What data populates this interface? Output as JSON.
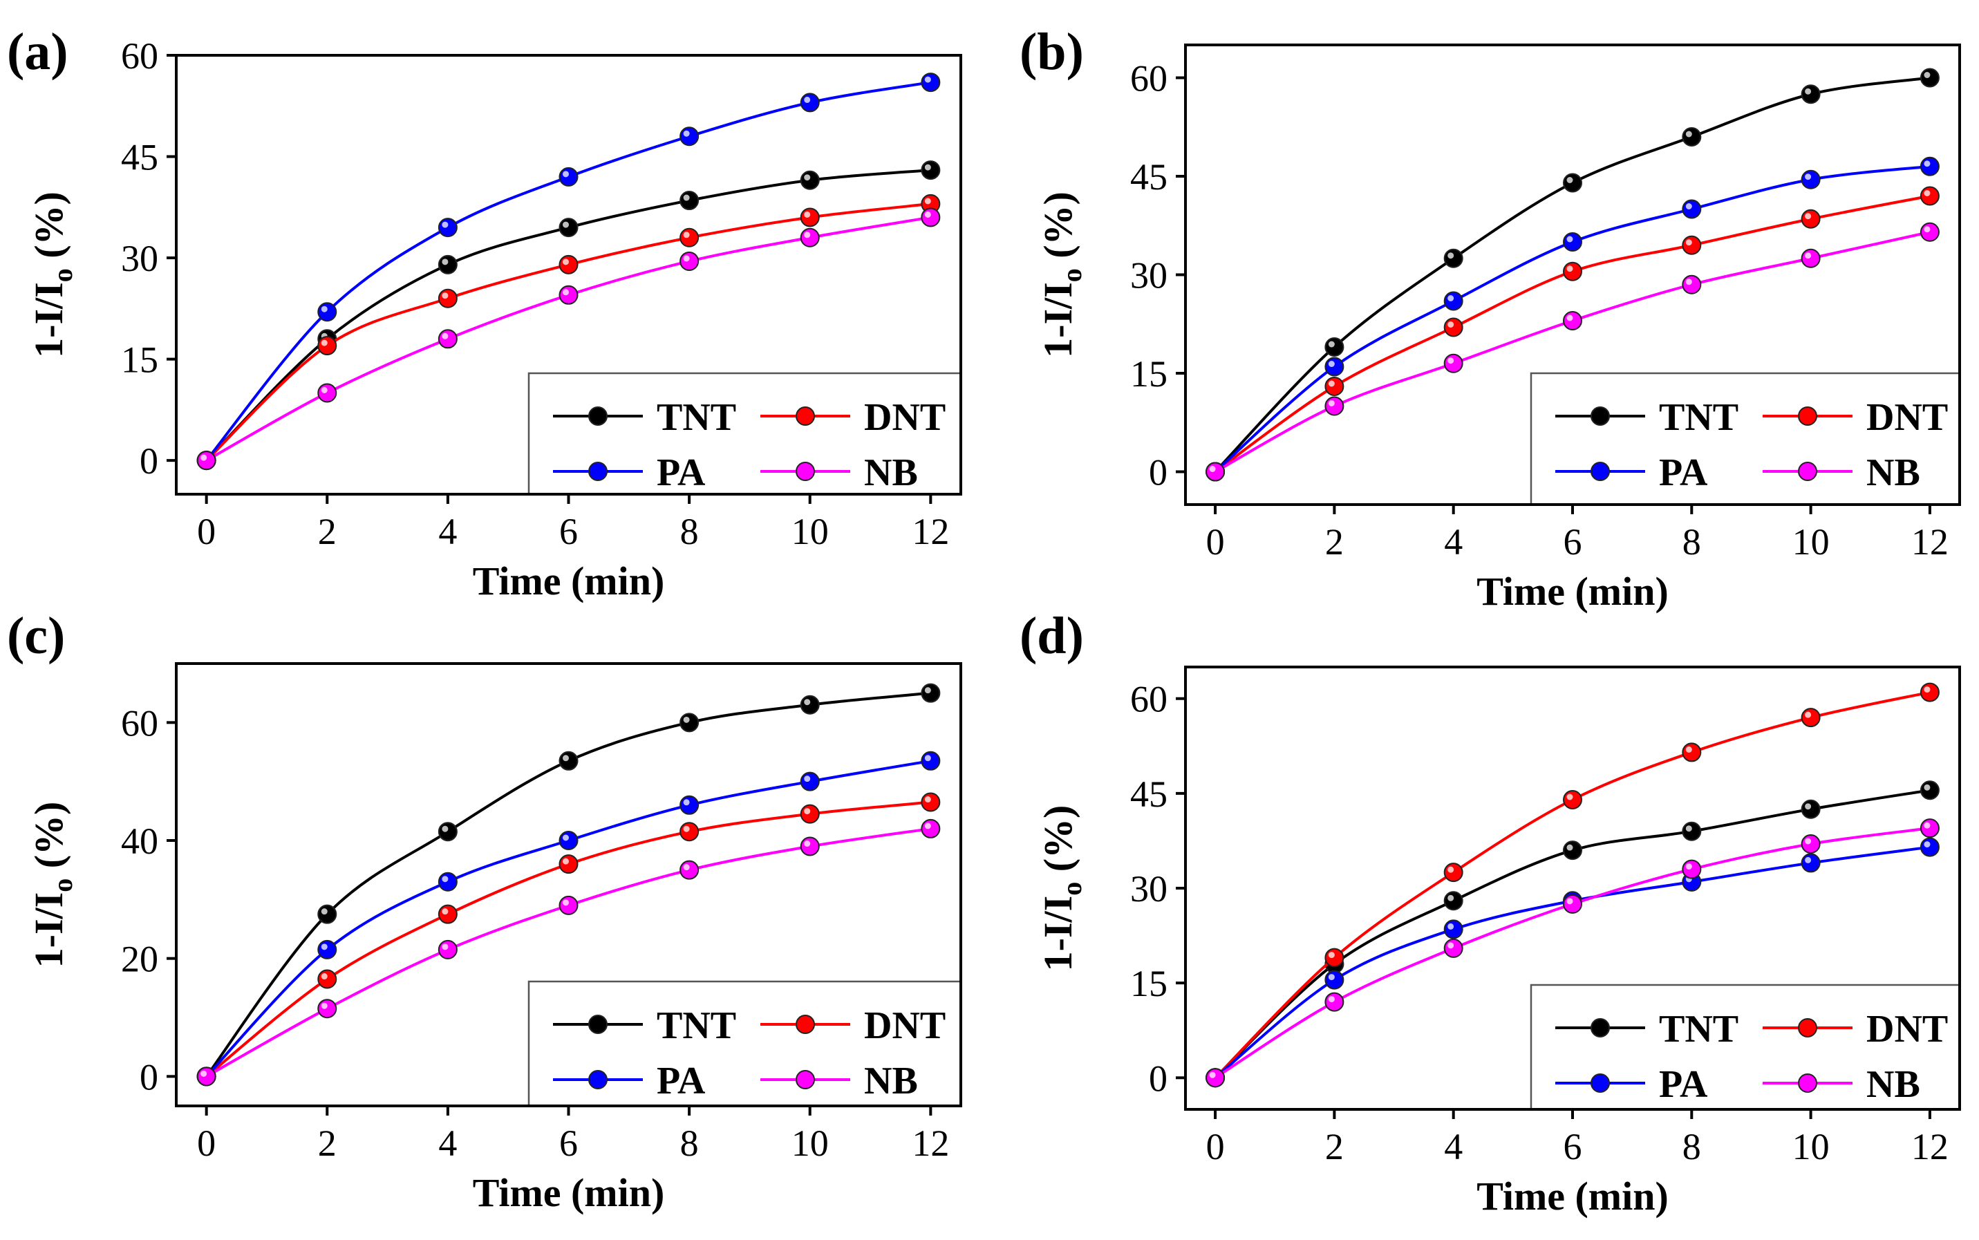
{
  "chart_data": [
    {
      "type": "line",
      "panel": "(a)",
      "xlabel": "Time (min)",
      "ylabel": "1-I/I",
      "ylabel_sub": "o",
      "ylabel_unit": " (%)",
      "x": [
        0,
        2,
        4,
        6,
        8,
        10,
        12
      ],
      "xlim": [
        -0.5,
        12.5
      ],
      "ylim": [
        -5,
        60
      ],
      "xticks": [
        0,
        2,
        4,
        6,
        8,
        10,
        12
      ],
      "yticks": [
        0,
        15,
        30,
        45,
        60
      ],
      "legend_position": "bottom-right",
      "series": [
        {
          "name": "TNT",
          "color": "#000000",
          "values": [
            0,
            18,
            29,
            34.5,
            38.5,
            41.5,
            43
          ]
        },
        {
          "name": "DNT",
          "color": "#ff0000",
          "values": [
            0,
            17,
            24,
            29,
            33,
            36,
            38
          ]
        },
        {
          "name": "PA",
          "color": "#0000ff",
          "values": [
            0,
            22,
            34.5,
            42,
            48,
            53,
            56
          ]
        },
        {
          "name": "NB",
          "color": "#ff00ff",
          "values": [
            0,
            10,
            18,
            24.5,
            29.5,
            33,
            36
          ]
        }
      ]
    },
    {
      "type": "line",
      "panel": "(b)",
      "xlabel": "Time (min)",
      "ylabel": "1-I/I",
      "ylabel_sub": "o",
      "ylabel_unit": " (%)",
      "x": [
        0,
        2,
        4,
        6,
        8,
        10,
        12
      ],
      "xlim": [
        -0.5,
        12.5
      ],
      "ylim": [
        -5,
        65
      ],
      "xticks": [
        0,
        2,
        4,
        6,
        8,
        10,
        12
      ],
      "yticks": [
        0,
        15,
        30,
        45,
        60
      ],
      "legend_position": "bottom-right",
      "series": [
        {
          "name": "TNT",
          "color": "#000000",
          "values": [
            0,
            19,
            32.5,
            44,
            51,
            57.5,
            60
          ]
        },
        {
          "name": "DNT",
          "color": "#ff0000",
          "values": [
            0,
            13,
            22,
            30.5,
            34.5,
            38.5,
            42
          ]
        },
        {
          "name": "PA",
          "color": "#0000ff",
          "values": [
            0,
            16,
            26,
            35,
            40,
            44.5,
            46.5
          ]
        },
        {
          "name": "NB",
          "color": "#ff00ff",
          "values": [
            0,
            10,
            16.5,
            23,
            28.5,
            32.5,
            36.5
          ]
        }
      ]
    },
    {
      "type": "line",
      "panel": "(c)",
      "xlabel": "Time (min)",
      "ylabel": "1-I/I",
      "ylabel_sub": "o",
      "ylabel_unit": " (%)",
      "x": [
        0,
        2,
        4,
        6,
        8,
        10,
        12
      ],
      "xlim": [
        -0.5,
        12.5
      ],
      "ylim": [
        -5,
        70
      ],
      "xticks": [
        0,
        2,
        4,
        6,
        8,
        10,
        12
      ],
      "yticks": [
        0,
        20,
        40,
        60
      ],
      "legend_position": "bottom-right",
      "series": [
        {
          "name": "TNT",
          "color": "#000000",
          "values": [
            0,
            27.5,
            41.5,
            53.5,
            60,
            63,
            65
          ]
        },
        {
          "name": "DNT",
          "color": "#ff0000",
          "values": [
            0,
            16.5,
            27.5,
            36,
            41.5,
            44.5,
            46.5
          ]
        },
        {
          "name": "PA",
          "color": "#0000ff",
          "values": [
            0,
            21.5,
            33,
            40,
            46,
            50,
            53.5
          ]
        },
        {
          "name": "NB",
          "color": "#ff00ff",
          "values": [
            0,
            11.5,
            21.5,
            29,
            35,
            39,
            42
          ]
        }
      ]
    },
    {
      "type": "line",
      "panel": "(d)",
      "xlabel": "Time (min)",
      "ylabel": "1-I/I",
      "ylabel_sub": "o",
      "ylabel_unit": " (%)",
      "x": [
        0,
        2,
        4,
        6,
        8,
        10,
        12
      ],
      "xlim": [
        -0.5,
        12.5
      ],
      "ylim": [
        -5,
        65
      ],
      "xticks": [
        0,
        2,
        4,
        6,
        8,
        10,
        12
      ],
      "yticks": [
        0,
        15,
        30,
        45,
        60
      ],
      "legend_position": "bottom-right",
      "series": [
        {
          "name": "TNT",
          "color": "#000000",
          "values": [
            0,
            18,
            28,
            36,
            39,
            42.5,
            45.5
          ]
        },
        {
          "name": "DNT",
          "color": "#ff0000",
          "values": [
            0,
            19,
            32.5,
            44,
            51.5,
            57,
            61
          ]
        },
        {
          "name": "PA",
          "color": "#0000ff",
          "values": [
            0,
            15.5,
            23.5,
            28,
            31,
            34,
            36.5
          ]
        },
        {
          "name": "NB",
          "color": "#ff00ff",
          "values": [
            0,
            12,
            20.5,
            27.5,
            33,
            37,
            39.5
          ]
        }
      ]
    }
  ]
}
